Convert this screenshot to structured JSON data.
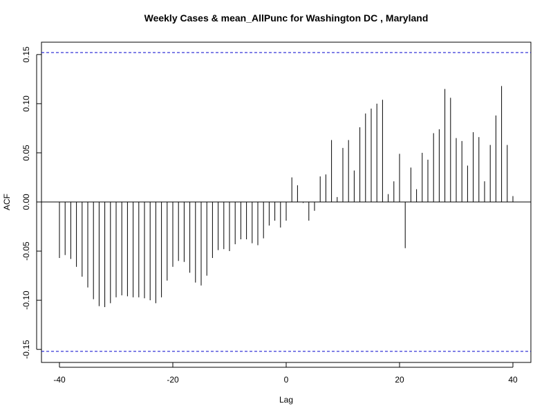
{
  "chart_data": {
    "type": "bar",
    "subtype": "acf-spike",
    "title": "Weekly Cases & mean_AllPunc for Washington DC , Maryland",
    "xlabel": "Lag",
    "ylabel": "ACF",
    "xlim": [
      -40,
      40
    ],
    "ylim": [
      -0.16,
      0.16
    ],
    "x_ticks": [
      -40,
      -20,
      0,
      20,
      40
    ],
    "y_ticks": [
      -0.15,
      -0.1,
      -0.05,
      0.0,
      0.05,
      0.1,
      0.15
    ],
    "y_tick_labels": [
      "-0.15",
      "-0.10",
      "-0.05",
      "0.00",
      "0.05",
      "0.10",
      "0.15"
    ],
    "confidence_bound": 0.152,
    "grid": false,
    "colors": {
      "spike": "#000000",
      "zero_line": "#000000",
      "ci_line": "#0000cc",
      "frame": "#000000"
    },
    "x": [
      -40,
      -39,
      -38,
      -37,
      -36,
      -35,
      -34,
      -33,
      -32,
      -31,
      -30,
      -29,
      -28,
      -27,
      -26,
      -25,
      -24,
      -23,
      -22,
      -21,
      -20,
      -19,
      -18,
      -17,
      -16,
      -15,
      -14,
      -13,
      -12,
      -11,
      -10,
      -9,
      -8,
      -7,
      -6,
      -5,
      -4,
      -3,
      -2,
      -1,
      0,
      1,
      2,
      3,
      4,
      5,
      6,
      7,
      8,
      9,
      10,
      11,
      12,
      13,
      14,
      15,
      16,
      17,
      18,
      19,
      20,
      21,
      22,
      23,
      24,
      25,
      26,
      27,
      28,
      29,
      30,
      31,
      32,
      33,
      34,
      35,
      36,
      37,
      38,
      39,
      40
    ],
    "values": [
      -0.057,
      -0.054,
      -0.058,
      -0.066,
      -0.076,
      -0.087,
      -0.099,
      -0.106,
      -0.107,
      -0.103,
      -0.097,
      -0.095,
      -0.096,
      -0.097,
      -0.097,
      -0.098,
      -0.1,
      -0.103,
      -0.097,
      -0.08,
      -0.066,
      -0.06,
      -0.061,
      -0.072,
      -0.082,
      -0.085,
      -0.075,
      -0.057,
      -0.049,
      -0.048,
      -0.05,
      -0.043,
      -0.038,
      -0.038,
      -0.042,
      -0.044,
      -0.037,
      -0.024,
      -0.019,
      -0.026,
      -0.019,
      0.025,
      0.017,
      -0.001,
      -0.019,
      -0.009,
      0.026,
      0.028,
      0.063,
      0.005,
      0.055,
      0.063,
      0.032,
      0.076,
      0.09,
      0.095,
      0.1,
      0.104,
      0.008,
      0.021,
      0.049,
      -0.047,
      0.035,
      0.013,
      0.05,
      0.043,
      0.07,
      0.074,
      0.115,
      0.106,
      0.065,
      0.062,
      0.037,
      0.071,
      0.066,
      0.021,
      0.058,
      0.088,
      0.118,
      0.058,
      0.006
    ]
  }
}
